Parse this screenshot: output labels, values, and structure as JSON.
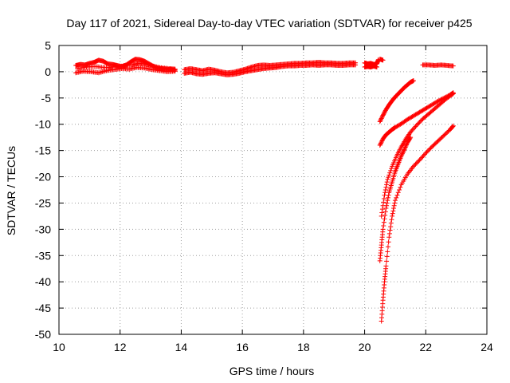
{
  "chart_data": {
    "type": "scatter",
    "title": "Day 117 of 2021, Sidereal Day-to-day VTEC variation (SDTVAR) for receiver p425",
    "xlabel": "GPS time / hours",
    "ylabel": "SDTVAR / TECUs",
    "xlim": [
      10,
      24
    ],
    "ylim": [
      -50,
      5
    ],
    "xticks": [
      10,
      12,
      14,
      16,
      18,
      20,
      22,
      24
    ],
    "yticks": [
      5,
      0,
      -5,
      -10,
      -15,
      -20,
      -25,
      -30,
      -35,
      -40,
      -45,
      -50
    ],
    "grid": true,
    "marker": "plus",
    "color": "#ff0000",
    "series": [
      {
        "x": [
          10.55,
          10.7,
          10.85,
          11.0,
          11.15,
          11.3,
          11.45,
          11.6,
          11.75,
          11.9,
          12.05,
          12.2,
          12.35,
          12.5,
          12.65,
          12.8,
          12.95,
          13.1,
          13.25,
          13.4,
          13.55,
          13.7,
          13.8
        ],
        "y": [
          1.2,
          1.4,
          1.3,
          1.6,
          1.8,
          2.2,
          2.0,
          1.5,
          1.4,
          1.2,
          1.0,
          1.3,
          1.9,
          2.4,
          2.3,
          2.0,
          1.5,
          1.0,
          0.7,
          0.6,
          0.5,
          0.4,
          0.3
        ]
      },
      {
        "x": [
          10.55,
          10.8,
          11.05,
          11.3,
          11.55,
          11.8,
          12.05,
          12.3,
          12.55,
          12.8,
          13.05,
          13.3,
          13.55,
          13.8
        ],
        "y": [
          -0.2,
          0.1,
          0.0,
          -0.2,
          0.2,
          0.4,
          0.6,
          0.5,
          0.8,
          0.7,
          0.4,
          0.2,
          0.0,
          0.1
        ]
      },
      {
        "x": [
          10.6,
          10.9,
          11.2,
          11.5,
          11.8,
          12.1,
          12.4,
          12.6,
          12.8,
          13.0,
          13.3,
          13.6,
          13.8
        ],
        "y": [
          0.6,
          0.9,
          1.0,
          0.8,
          0.9,
          1.1,
          1.3,
          1.6,
          1.5,
          1.2,
          0.8,
          0.6,
          0.5
        ]
      },
      {
        "x": [
          14.1,
          14.3,
          14.5,
          14.7,
          14.9,
          15.1,
          15.3,
          15.5,
          15.7,
          15.9,
          16.1,
          16.3,
          16.5,
          16.7,
          16.9,
          17.1,
          17.3,
          17.5,
          17.7,
          17.9,
          18.1,
          18.3,
          18.5,
          18.7,
          18.9,
          19.1,
          19.3,
          19.5,
          19.7
        ],
        "y": [
          0.4,
          0.6,
          0.4,
          0.2,
          0.5,
          0.3,
          0.0,
          -0.2,
          -0.1,
          0.2,
          0.5,
          0.9,
          1.2,
          1.3,
          1.2,
          1.3,
          1.4,
          1.5,
          1.6,
          1.6,
          1.7,
          1.7,
          1.8,
          1.7,
          1.7,
          1.6,
          1.6,
          1.7,
          1.7
        ]
      },
      {
        "x": [
          14.1,
          14.3,
          14.5,
          14.7,
          14.9,
          15.1,
          15.3,
          15.5,
          15.7,
          15.9,
          16.1,
          16.3,
          16.5,
          16.7,
          16.9,
          17.1,
          17.3,
          17.5,
          17.7,
          17.9,
          18.1,
          18.3,
          18.5,
          18.7,
          18.9,
          19.1,
          19.3,
          19.5,
          19.7
        ],
        "y": [
          -0.3,
          -0.1,
          -0.4,
          -0.5,
          -0.3,
          -0.2,
          -0.4,
          -0.6,
          -0.5,
          -0.3,
          0.0,
          0.2,
          0.4,
          0.6,
          0.7,
          0.8,
          1.0,
          1.1,
          1.1,
          1.2,
          1.2,
          1.3,
          1.2,
          1.3,
          1.3,
          1.2,
          1.2,
          1.3,
          1.3
        ]
      },
      {
        "x": [
          20.0,
          20.1,
          20.2,
          20.3,
          20.4,
          20.45
        ],
        "y": [
          1.7,
          1.5,
          1.6,
          1.4,
          1.5,
          2.3
        ]
      },
      {
        "x": [
          20.0,
          20.1,
          20.2,
          20.3,
          20.4
        ],
        "y": [
          0.9,
          1.0,
          0.9,
          1.1,
          0.9
        ]
      },
      {
        "x": [
          20.5,
          20.6
        ],
        "y": [
          2.4,
          2.2
        ]
      },
      {
        "x": [
          21.9,
          22.1,
          22.3,
          22.5,
          22.7,
          22.9
        ],
        "y": [
          1.3,
          1.3,
          1.2,
          1.3,
          1.2,
          1.1
        ]
      },
      {
        "x": [
          20.5,
          20.6,
          20.7,
          20.8,
          20.9,
          21.0,
          21.1,
          21.2,
          21.3,
          21.4,
          21.5,
          21.6
        ],
        "y": [
          -9.5,
          -8.3,
          -7.2,
          -6.3,
          -5.5,
          -4.8,
          -4.2,
          -3.6,
          -3.0,
          -2.5,
          -2.0,
          -1.7
        ]
      },
      {
        "x": [
          20.5,
          20.6,
          20.7,
          20.8,
          20.9,
          21.0,
          21.2,
          21.4,
          21.6,
          21.8,
          22.0,
          22.2,
          22.4,
          22.6,
          22.8,
          22.9
        ],
        "y": [
          -14.0,
          -12.8,
          -12.0,
          -11.5,
          -11.0,
          -10.6,
          -9.9,
          -9.1,
          -8.4,
          -7.7,
          -7.0,
          -6.3,
          -5.6,
          -5.0,
          -4.4,
          -4.0
        ]
      },
      {
        "x": [
          20.55,
          20.65,
          20.75,
          20.9,
          21.05,
          21.2,
          21.35,
          21.5,
          21.7,
          21.9,
          22.1,
          22.3,
          22.5,
          22.7,
          22.9
        ],
        "y": [
          -27.5,
          -23.5,
          -20.5,
          -18.0,
          -16.0,
          -14.3,
          -12.8,
          -11.5,
          -10.2,
          -9.0,
          -8.0,
          -7.0,
          -6.0,
          -5.0,
          -4.2
        ]
      },
      {
        "x": [
          20.5,
          20.55,
          20.6,
          20.7,
          20.8,
          20.9,
          21.0,
          21.1,
          21.2,
          21.3,
          21.4,
          21.5
        ],
        "y": [
          -36.0,
          -33.0,
          -30.0,
          -26.0,
          -23.0,
          -21.0,
          -19.0,
          -17.5,
          -16.0,
          -14.8,
          -13.5,
          -12.5
        ]
      },
      {
        "x": [
          20.55,
          20.6,
          20.65,
          20.7,
          20.8,
          20.9,
          21.0,
          21.2,
          21.4,
          21.6,
          21.8,
          22.0,
          22.2,
          22.4,
          22.6,
          22.8,
          22.9
        ],
        "y": [
          -47.5,
          -43.5,
          -40.0,
          -37.0,
          -31.5,
          -27.5,
          -24.5,
          -21.5,
          -19.5,
          -18.0,
          -16.8,
          -15.5,
          -14.3,
          -13.2,
          -12.1,
          -11.0,
          -10.3
        ]
      }
    ]
  }
}
